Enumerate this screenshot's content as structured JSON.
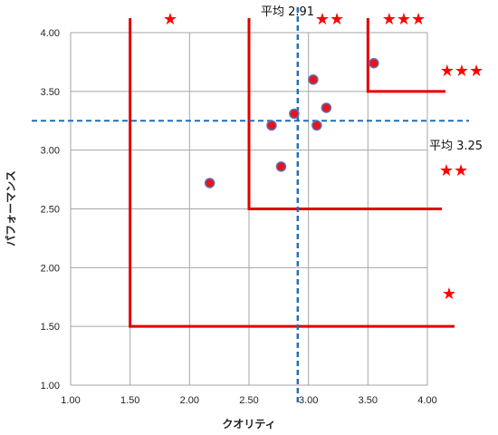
{
  "chart_data": {
    "type": "scatter",
    "xlabel": "クオリティ",
    "ylabel": "パフォーマンス",
    "xlim": [
      1.0,
      4.0
    ],
    "ylim": [
      1.0,
      4.0
    ],
    "x_ticks": [
      "1.00",
      "1.50",
      "2.00",
      "2.50",
      "3.00",
      "3.50",
      "4.00"
    ],
    "y_ticks": [
      "1.00",
      "1.50",
      "2.00",
      "2.50",
      "3.00",
      "3.50",
      "4.00"
    ],
    "grid": true,
    "points": [
      {
        "x": 2.17,
        "y": 2.72
      },
      {
        "x": 2.69,
        "y": 3.21
      },
      {
        "x": 2.77,
        "y": 2.86
      },
      {
        "x": 2.88,
        "y": 3.31
      },
      {
        "x": 3.04,
        "y": 3.6
      },
      {
        "x": 3.07,
        "y": 3.21
      },
      {
        "x": 3.15,
        "y": 3.36
      },
      {
        "x": 3.55,
        "y": 3.74
      }
    ],
    "averages": {
      "x": {
        "value": 2.91,
        "label": "平均 2.91"
      },
      "y": {
        "value": 3.25,
        "label": "平均 3.25"
      }
    },
    "thresholds": [
      1.5,
      2.5,
      3.5
    ],
    "rating_labels": {
      "one": "★",
      "two": "★★",
      "three": "★★★"
    },
    "colors": {
      "point_fill": "#e8141c",
      "point_stroke": "#5b6fb5",
      "threshold_line": "#e00000",
      "average_line": "#1f6fb5",
      "grid": "#a6a6a6",
      "star": "#ff0000"
    }
  }
}
